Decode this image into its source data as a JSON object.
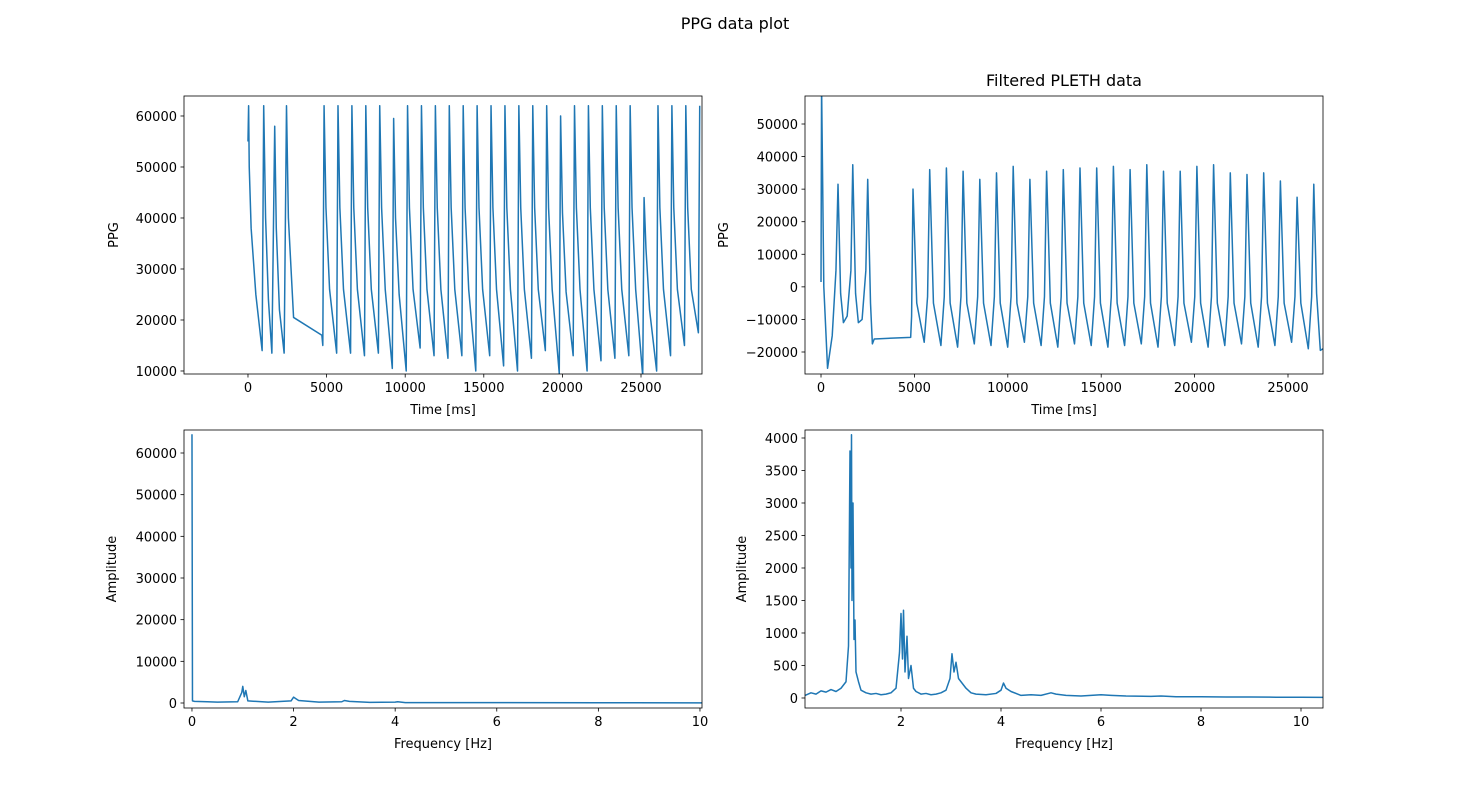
{
  "title": "PPG data plot",
  "chart_data": [
    {
      "type": "line",
      "xlabel": "Time [ms]",
      "ylabel": "PPG",
      "color": "#1f77b4",
      "xlim": [
        -4070,
        28880
      ],
      "ylim": [
        9410,
        63920
      ],
      "xticks": [
        0,
        5000,
        10000,
        15000,
        20000,
        25000
      ],
      "yticks": [
        10000,
        20000,
        30000,
        40000,
        50000,
        60000
      ],
      "x": [
        0,
        40,
        80,
        200,
        500,
        900,
        1000,
        1120,
        1300,
        1520,
        1700,
        1800,
        2000,
        2300,
        2450,
        2570,
        2900,
        4700,
        4760,
        4840,
        4960,
        5190,
        5640,
        5725,
        5845,
        6075,
        6525,
        6610,
        6730,
        6960,
        7410,
        7495,
        7615,
        7845,
        8295,
        8380,
        8500,
        8730,
        9180,
        9265,
        9385,
        9615,
        10065,
        10150,
        10270,
        10500,
        10950,
        11035,
        11155,
        11385,
        11835,
        11920,
        12040,
        12270,
        12720,
        12805,
        12925,
        13155,
        13605,
        13690,
        13810,
        14040,
        14490,
        14575,
        14695,
        14925,
        15375,
        15460,
        15580,
        15810,
        16260,
        16345,
        16465,
        16695,
        17145,
        17230,
        17350,
        17580,
        18030,
        18115,
        18235,
        18465,
        18915,
        19000,
        19120,
        19350,
        19800,
        19885,
        20005,
        20235,
        20685,
        20770,
        20890,
        21120,
        21570,
        21655,
        21775,
        22005,
        22455,
        22540,
        22660,
        22890,
        23340,
        23425,
        23545,
        23775,
        24225,
        24310,
        24430,
        24660,
        25110,
        25195,
        25315,
        25545,
        25995,
        26080,
        26200,
        26430,
        26880,
        26965,
        27085,
        27315,
        27765,
        27850,
        27970,
        28200,
        28650,
        28735
      ],
      "values": [
        55000,
        62000,
        50000,
        38000,
        25000,
        14000,
        62000,
        40000,
        24000,
        13500,
        58000,
        38000,
        22000,
        13500,
        62000,
        40000,
        20500,
        17000,
        15000,
        62000,
        42000,
        26000,
        13500,
        62000,
        42000,
        26000,
        13500,
        62000,
        42000,
        26000,
        13000,
        62000,
        42000,
        26000,
        13500,
        62000,
        42000,
        26000,
        10500,
        59500,
        40000,
        25000,
        10000,
        62000,
        42000,
        26000,
        14500,
        62000,
        42000,
        26000,
        13000,
        62000,
        42000,
        26000,
        12500,
        62000,
        42000,
        26000,
        13000,
        62000,
        42000,
        26000,
        10000,
        62000,
        42000,
        26000,
        13000,
        62000,
        42000,
        26000,
        11000,
        62000,
        42000,
        26000,
        10000,
        62000,
        42000,
        26000,
        12500,
        62000,
        42000,
        26000,
        14000,
        62000,
        42000,
        26000,
        9500,
        60000,
        41000,
        25500,
        13000,
        62000,
        42000,
        26000,
        10000,
        62000,
        42000,
        26000,
        12000,
        62000,
        42000,
        26000,
        12500,
        62000,
        42000,
        26000,
        13000,
        62000,
        42000,
        26000,
        9000,
        44000,
        34000,
        22000,
        10000,
        62000,
        42000,
        26000,
        13000,
        62000,
        42000,
        26000,
        15000,
        62000,
        42000,
        26000,
        17500,
        62000
      ]
    },
    {
      "type": "line",
      "title": "Filtered PLETH data",
      "xlabel": "Time [ms]",
      "ylabel": "PPG",
      "color": "#1f77b4",
      "xlim": [
        -857,
        26874
      ],
      "ylim": [
        -26755,
        58597
      ],
      "xticks": [
        0,
        5000,
        10000,
        15000,
        20000,
        25000
      ],
      "yticks": [
        {
          "value": -20000,
          "label": "−20000"
        },
        {
          "value": -10000,
          "label": "−10000"
        },
        0,
        10000,
        20000,
        30000,
        40000,
        50000
      ],
      "x": [
        0,
        30,
        150,
        350,
        600,
        800,
        910,
        1050,
        1200,
        1400,
        1600,
        1700,
        1850,
        2000,
        2200,
        2400,
        2500,
        2650,
        2750,
        2850,
        4800,
        4850,
        4925,
        5125,
        5525,
        5705,
        5819,
        6019,
        6419,
        6599,
        6713,
        6913,
        7313,
        7493,
        7607,
        7807,
        8207,
        8387,
        8501,
        8701,
        9101,
        9281,
        9395,
        9595,
        9995,
        10175,
        10289,
        10489,
        10889,
        11069,
        11183,
        11383,
        11783,
        11963,
        12077,
        12277,
        12677,
        12857,
        12971,
        13171,
        13571,
        13751,
        13865,
        14065,
        14465,
        14645,
        14759,
        14959,
        15359,
        15539,
        15653,
        15853,
        16253,
        16433,
        16547,
        16747,
        17147,
        17327,
        17441,
        17641,
        18041,
        18221,
        18335,
        18535,
        18935,
        19115,
        19229,
        19429,
        19829,
        20009,
        20123,
        20323,
        20723,
        20903,
        21017,
        21217,
        21617,
        21797,
        21911,
        22111,
        22511,
        22691,
        22805,
        23005,
        23405,
        23585,
        23699,
        23899,
        24299,
        24479,
        24593,
        24793,
        25193,
        25373,
        25487,
        25687,
        26087,
        26267,
        26381,
        26531,
        26731,
        26870
      ],
      "values": [
        1500,
        62000,
        0,
        -25000,
        -15000,
        5000,
        31500,
        -2000,
        -11000,
        -9000,
        5000,
        37500,
        -2000,
        -11000,
        -10000,
        5000,
        33000,
        -5000,
        -17500,
        -16000,
        -15500,
        -9000,
        30000,
        -5000,
        -17000,
        -3000,
        36000,
        -5000,
        -18000,
        -3000,
        36500,
        -5000,
        -18500,
        -3000,
        35500,
        -5000,
        -17500,
        -3000,
        33000,
        -5000,
        -18000,
        -3000,
        35000,
        -5000,
        -18500,
        -3000,
        37000,
        -5000,
        -17000,
        -3000,
        33000,
        -5000,
        -18000,
        -3000,
        35500,
        -5000,
        -18500,
        -3000,
        36000,
        -5000,
        -17500,
        -3000,
        36500,
        -5000,
        -18000,
        -3000,
        36500,
        -5000,
        -18500,
        -3000,
        37000,
        -5000,
        -18000,
        -3000,
        36000,
        -5000,
        -17500,
        -3000,
        37500,
        -5000,
        -18500,
        -3000,
        35500,
        -5000,
        -18000,
        -3000,
        35500,
        -5000,
        -17000,
        -3000,
        37000,
        -5000,
        -18500,
        -3000,
        37500,
        -5000,
        -18000,
        -3000,
        35000,
        -5000,
        -17500,
        -3000,
        34500,
        -5000,
        -18500,
        -3000,
        35000,
        -5000,
        -18000,
        -3000,
        32500,
        -5000,
        -17000,
        -3000,
        27500,
        -5000,
        -19000,
        -3000,
        31500,
        -2000,
        -19500,
        -19000
      ]
    },
    {
      "type": "line",
      "xlabel": "Frequency [Hz]",
      "ylabel": "Amplitude",
      "color": "#1f77b4",
      "xlim": [
        -0.157,
        10.04
      ],
      "ylim": [
        -1200,
        65520
      ],
      "xticks": [
        0,
        2,
        4,
        6,
        8,
        10
      ],
      "yticks": [
        0,
        10000,
        20000,
        30000,
        40000,
        50000,
        60000
      ],
      "x": [
        0,
        0.01,
        0.05,
        0.3,
        0.5,
        0.9,
        0.98,
        1.0,
        1.03,
        1.06,
        1.1,
        1.5,
        1.95,
        2.0,
        2.05,
        2.1,
        2.5,
        2.95,
        3.0,
        3.1,
        3.5,
        4.0,
        4.05,
        4.2,
        5,
        6,
        8,
        10,
        10.04
      ],
      "values": [
        64500,
        500,
        400,
        300,
        200,
        300,
        2500,
        4000,
        1500,
        3000,
        500,
        200,
        500,
        1400,
        1000,
        600,
        200,
        300,
        600,
        400,
        150,
        200,
        300,
        100,
        100,
        80,
        50,
        40,
        40
      ]
    },
    {
      "type": "line",
      "xlabel": "Frequency [Hz]",
      "ylabel": "Amplitude",
      "color": "#1f77b4",
      "xlim": [
        0.08,
        10.44
      ],
      "ylim": [
        -154,
        4123
      ],
      "xticks": [
        2,
        4,
        6,
        8,
        10
      ],
      "yticks": [
        0,
        500,
        1000,
        1500,
        2000,
        2500,
        3000,
        3500,
        4000
      ],
      "x": [
        0.08,
        0.2,
        0.3,
        0.4,
        0.5,
        0.6,
        0.7,
        0.8,
        0.9,
        0.95,
        0.98,
        1.0,
        1.01,
        1.02,
        1.04,
        1.06,
        1.08,
        1.1,
        1.15,
        1.2,
        1.3,
        1.4,
        1.5,
        1.6,
        1.7,
        1.8,
        1.9,
        1.97,
        2.0,
        2.03,
        2.05,
        2.08,
        2.12,
        2.15,
        2.2,
        2.25,
        2.3,
        2.4,
        2.5,
        2.6,
        2.7,
        2.8,
        2.9,
        2.98,
        3.02,
        3.06,
        3.1,
        3.15,
        3.2,
        3.3,
        3.4,
        3.5,
        3.7,
        3.9,
        4.0,
        4.05,
        4.1,
        4.2,
        4.4,
        4.6,
        4.8,
        5.0,
        5.1,
        5.3,
        5.6,
        6.0,
        6.2,
        6.5,
        7.0,
        7.2,
        7.5,
        8.0,
        8.5,
        9.0,
        9.5,
        10.0,
        10.44
      ],
      "values": [
        40,
        80,
        60,
        110,
        90,
        130,
        100,
        150,
        250,
        800,
        3800,
        2000,
        4050,
        1500,
        3000,
        900,
        1200,
        400,
        250,
        120,
        80,
        60,
        70,
        50,
        60,
        80,
        150,
        700,
        1300,
        600,
        1350,
        400,
        950,
        300,
        500,
        150,
        100,
        60,
        70,
        50,
        60,
        80,
        120,
        300,
        680,
        400,
        550,
        300,
        250,
        150,
        80,
        60,
        50,
        70,
        120,
        230,
        150,
        100,
        40,
        50,
        40,
        80,
        60,
        40,
        30,
        50,
        40,
        30,
        25,
        30,
        20,
        20,
        15,
        15,
        12,
        12,
        10
      ]
    }
  ]
}
